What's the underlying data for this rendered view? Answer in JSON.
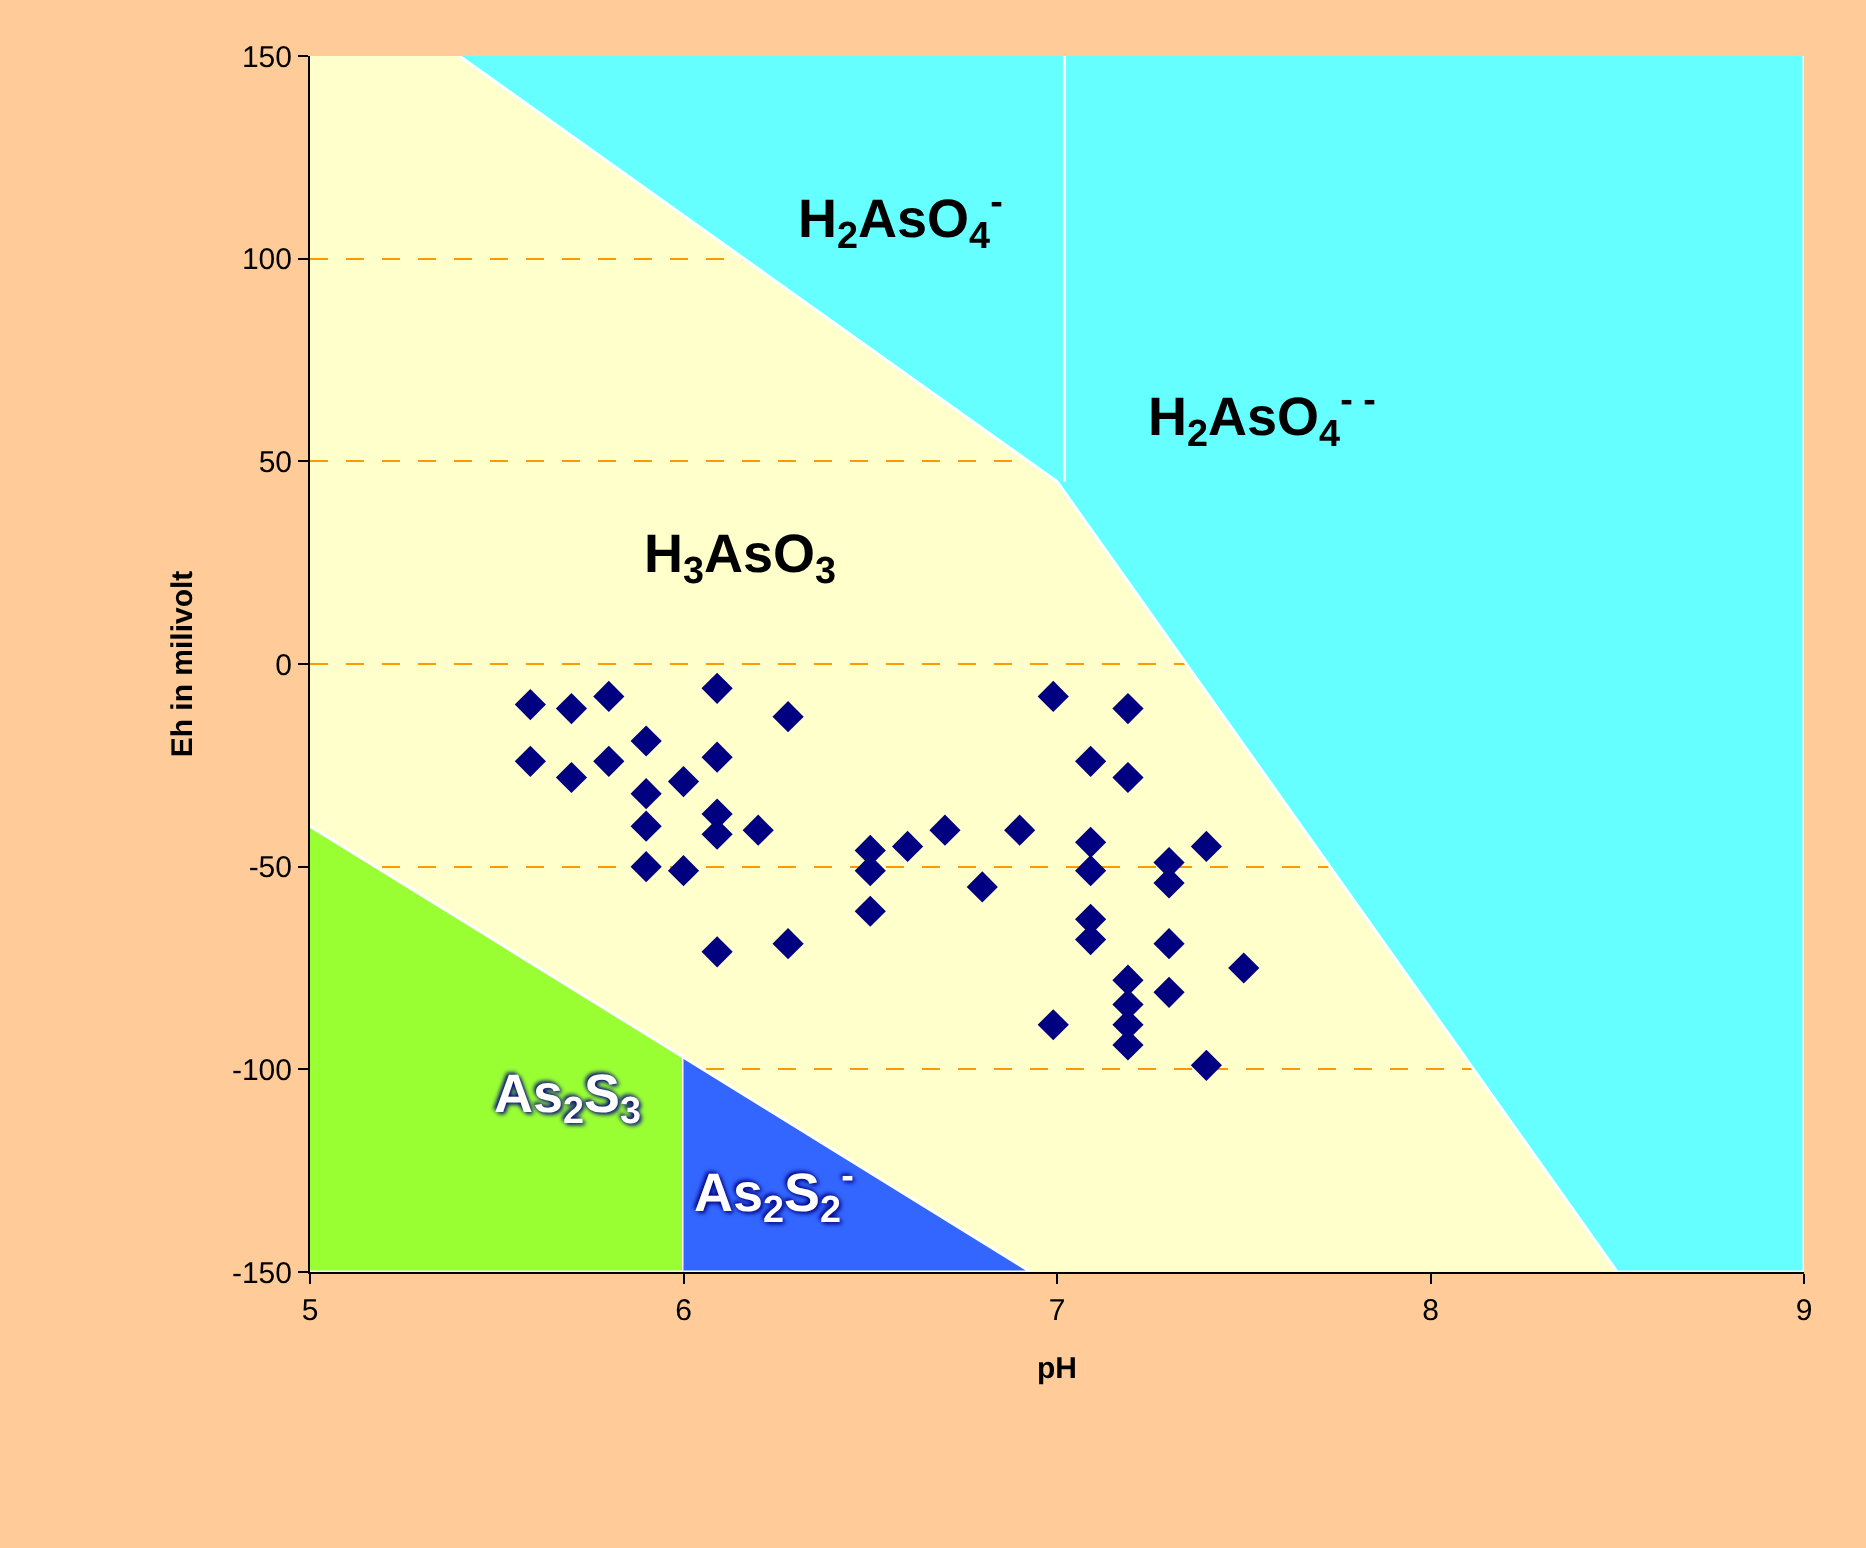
{
  "chart_data": {
    "type": "scatter",
    "xlabel": "pH",
    "ylabel": "Eh in milivolt",
    "xlim": [
      5,
      9
    ],
    "xticks": [
      5,
      6,
      7,
      8,
      9
    ],
    "ylim": [
      -150,
      150
    ],
    "yticks": [
      -150,
      -100,
      -50,
      0,
      50,
      100,
      150
    ],
    "grid": "y",
    "annotations": [
      "H$_{2}$AsO$_{4}$$^{-}$",
      "H$_{2}$AsO$_{4}$$^{- -}$",
      "H$_{3}$AsO$_{3}$",
      "As$_{2}$S$_{3}$",
      "As$_{2}$S$_{2}$$^{-}$"
    ],
    "series": [
      {
        "type": "area",
        "color": "#66ffff",
        "x": [
          5.4,
          7,
          8.5,
          9,
          9
        ],
        "values": [
          150,
          45,
          -150,
          -150,
          150
        ]
      },
      {
        "type": "area",
        "color": "#99ff33",
        "x": [
          5,
          6,
          6,
          5
        ],
        "values": [
          -40,
          -97,
          -150,
          -150
        ]
      },
      {
        "type": "area",
        "color": "#3366ff",
        "x": [
          6,
          6.93,
          6
        ],
        "values": [
          -97,
          -150,
          -150
        ]
      },
      {
        "type": "line",
        "color": "#ffffff",
        "x": [
          7.02,
          7.02
        ],
        "values": [
          45,
          150
        ]
      },
      {
        "color": "#000080",
        "marker": "diamond",
        "x": [
          5.59,
          5.7,
          5.8,
          5.59,
          5.7,
          5.8,
          5.9,
          5.9,
          6.0,
          5.9,
          5.9,
          6.0,
          6.09,
          6.09,
          6.09,
          6.09,
          6.2,
          6.28,
          6.09,
          6.28,
          6.5,
          6.5,
          6.5,
          6.6,
          6.7,
          6.8,
          6.9,
          6.99,
          6.99,
          7.09,
          7.09,
          7.09,
          7.09,
          7.09,
          7.19,
          7.19,
          7.19,
          7.19,
          7.19,
          7.19,
          7.3,
          7.3,
          7.3,
          7.3,
          7.4,
          7.4,
          7.5
        ],
        "values": [
          -10,
          -11,
          -8,
          -24,
          -28,
          -24,
          -19,
          -32,
          -29,
          -40,
          -50,
          -51,
          -6,
          -23,
          -37,
          -42,
          -41,
          -13,
          -71,
          -69,
          -46,
          -51,
          -61,
          -45,
          -41,
          -55,
          -41,
          -8,
          -89,
          -24,
          -44,
          -51,
          -63,
          -68,
          -11,
          -28,
          -78,
          -84,
          -89,
          -94,
          -49,
          -54,
          -69,
          -81,
          -45,
          -99,
          -75
        ]
      }
    ]
  }
}
